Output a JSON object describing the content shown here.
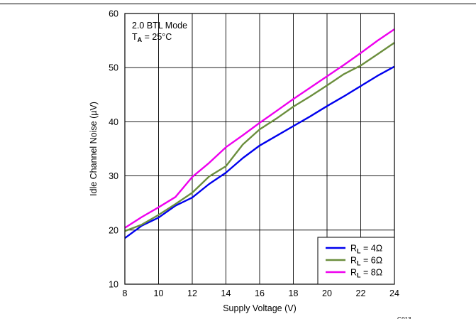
{
  "chart_data": {
    "type": "line",
    "title_line1": "2.0 BTL Mode",
    "title_line2_main": "T",
    "title_line2_sub": "A",
    "title_line2_rest": " = 25°C",
    "xlabel": "Supply Voltage (V)",
    "ylabel": "Idle Channel Noise (µV)",
    "xlim": [
      8,
      24
    ],
    "ylim": [
      10,
      60
    ],
    "xticks": [
      8,
      10,
      12,
      14,
      16,
      18,
      20,
      22,
      24
    ],
    "yticks": [
      10,
      20,
      30,
      40,
      50,
      60
    ],
    "grid": true,
    "legend_position": "bottom-right",
    "figure_id": "G013",
    "series": [
      {
        "name_main": "R",
        "name_sub": "L",
        "name_rest": " = 4Ω",
        "color": "#0000ee",
        "x": [
          8,
          9,
          10,
          11,
          12,
          13,
          14,
          15,
          16,
          17,
          18,
          19,
          20,
          21,
          22,
          23,
          24
        ],
        "y": [
          18.5,
          20.8,
          22.3,
          24.5,
          26.0,
          28.5,
          30.6,
          33.3,
          35.6,
          37.4,
          39.2,
          41.0,
          42.9,
          44.7,
          46.6,
          48.5,
          50.2
        ]
      },
      {
        "name_main": "R",
        "name_sub": "L",
        "name_rest": " = 6Ω",
        "color": "#6b8e3d",
        "x": [
          8,
          9,
          10,
          11,
          12,
          13,
          14,
          15,
          16,
          17,
          18,
          19,
          20,
          21,
          22,
          23,
          24
        ],
        "y": [
          19.8,
          21.0,
          22.8,
          24.8,
          26.9,
          29.9,
          31.8,
          35.8,
          38.6,
          40.6,
          42.8,
          44.7,
          46.7,
          48.8,
          50.4,
          52.5,
          54.6
        ]
      },
      {
        "name_main": "R",
        "name_sub": "L",
        "name_rest": " = 8Ω",
        "color": "#ee00ee",
        "x": [
          8,
          9,
          10,
          11,
          12,
          13,
          14,
          15,
          16,
          17,
          18,
          19,
          20,
          21,
          22,
          23,
          24
        ],
        "y": [
          20.4,
          22.4,
          24.2,
          26.1,
          29.8,
          32.4,
          35.3,
          37.5,
          39.8,
          42.0,
          44.2,
          46.3,
          48.4,
          50.5,
          52.7,
          55.0,
          57.1
        ]
      }
    ]
  }
}
